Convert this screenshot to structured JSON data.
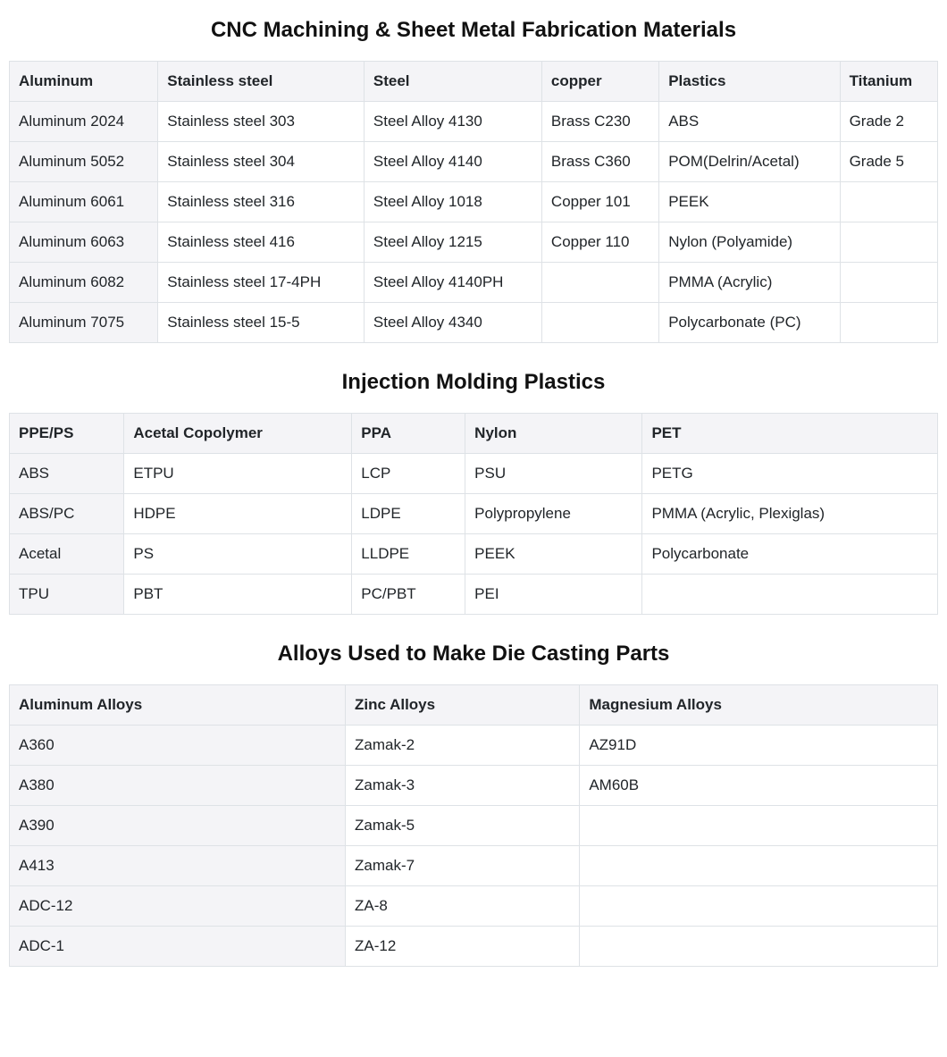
{
  "styles": {
    "background_color": "#ffffff",
    "text_color": "#212529",
    "border_color": "#dee2e6",
    "header_bg_color": "#f4f4f7",
    "first_col_bg_color": "#f4f4f7",
    "title_fontsize_pt": 18,
    "cell_fontsize_pt": 13,
    "font_family": "Arial"
  },
  "sections": [
    {
      "title": "CNC Machining & Sheet Metal Fabrication Materials",
      "type": "table",
      "columns": [
        "Aluminum",
        "Stainless steel",
        "Steel",
        "copper",
        "Plastics",
        "Titanium"
      ],
      "rows": [
        [
          "Aluminum 2024",
          "Stainless steel 303",
          "Steel Alloy 4130",
          "Brass C230",
          "ABS",
          "Grade 2"
        ],
        [
          "Aluminum 5052",
          "Stainless steel 304",
          "Steel Alloy 4140",
          "Brass C360",
          "POM(Delrin/Acetal)",
          "Grade 5"
        ],
        [
          "Aluminum 6061",
          "Stainless steel 316",
          "Steel Alloy 1018",
          "Copper 101",
          "PEEK",
          ""
        ],
        [
          "Aluminum 6063",
          "Stainless steel 416",
          "Steel Alloy 1215",
          "Copper 110",
          "Nylon (Polyamide)",
          ""
        ],
        [
          "Aluminum 6082",
          "Stainless steel 17-4PH",
          "Steel Alloy 4140PH",
          "",
          "PMMA (Acrylic)",
          ""
        ],
        [
          "Aluminum 7075",
          "Stainless steel 15-5",
          "Steel Alloy 4340",
          "",
          "Polycarbonate (PC)",
          ""
        ]
      ]
    },
    {
      "title": "Injection Molding Plastics",
      "type": "table",
      "columns": [
        "PPE/PS",
        "Acetal Copolymer",
        "PPA",
        "Nylon",
        "PET"
      ],
      "rows": [
        [
          "ABS",
          "ETPU",
          "LCP",
          "PSU",
          "PETG"
        ],
        [
          "ABS/PC",
          "HDPE",
          "LDPE",
          "Polypropylene",
          "PMMA (Acrylic, Plexiglas)"
        ],
        [
          "Acetal",
          "PS",
          "LLDPE",
          "PEEK",
          "Polycarbonate"
        ],
        [
          "TPU",
          "PBT",
          "PC/PBT",
          "PEI",
          ""
        ]
      ]
    },
    {
      "title": "Alloys Used to Make Die Casting Parts",
      "type": "table",
      "columns": [
        "Aluminum Alloys",
        "Zinc Alloys",
        "Magnesium Alloys"
      ],
      "rows": [
        [
          "A360",
          "Zamak-2",
          "AZ91D"
        ],
        [
          "A380",
          "Zamak-3",
          "AM60B"
        ],
        [
          "A390",
          "Zamak-5",
          ""
        ],
        [
          "A413",
          "Zamak-7",
          ""
        ],
        [
          "ADC-12",
          "ZA-8",
          ""
        ],
        [
          "ADC-1",
          "ZA-12",
          ""
        ]
      ]
    }
  ]
}
